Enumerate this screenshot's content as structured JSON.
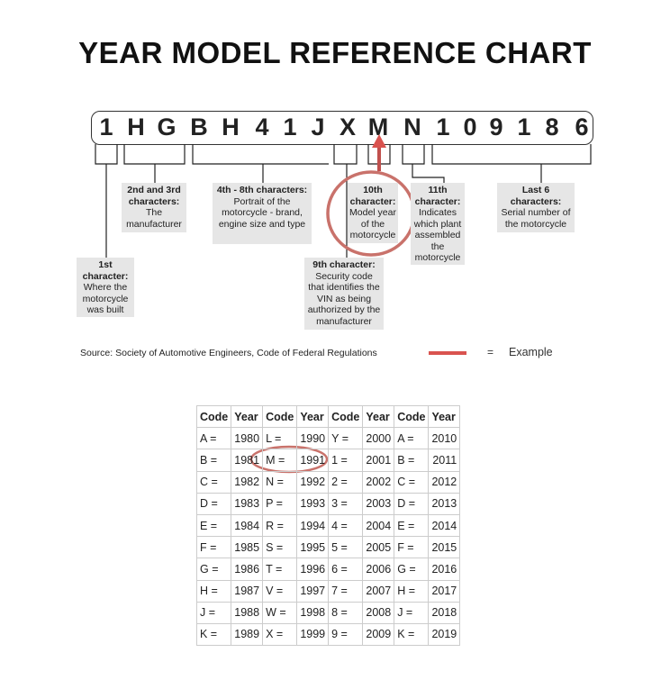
{
  "title": "YEAR MODEL REFERENCE CHART",
  "vin": [
    "1",
    "H",
    "G",
    "B",
    "H",
    "4",
    "1",
    "J",
    "X",
    "M",
    "N",
    "1",
    "0",
    "9",
    "1",
    "8",
    "6"
  ],
  "labels": {
    "first": {
      "head": "1st character:",
      "body": "Where the motorcycle was built"
    },
    "second_third": {
      "head": "2nd and 3rd characters:",
      "body": "The manufacturer"
    },
    "fourth_eighth": {
      "head": "4th - 8th characters:",
      "body": "Portrait of the motorcycle - brand, engine size and type"
    },
    "ninth": {
      "head": "9th character:",
      "body": "Security code that identifies the VIN as being authorized by the manufacturer"
    },
    "tenth": {
      "head": "10th character:",
      "body": "Model year of the motorcycle"
    },
    "eleventh": {
      "head": "11th character:",
      "body": "Indicates which plant assembled the motorcycle"
    },
    "last6": {
      "head": "Last 6 characters:",
      "body": "Serial number of the motorcycle"
    }
  },
  "source": "Source:  Society of Automotive Engineers, Code of Federal Regulations",
  "legend": {
    "equals": "=",
    "label": "Example",
    "color": "#d9534f"
  },
  "highlight_color": "#c0504d",
  "table": {
    "headers": [
      "Code",
      "Year",
      "Code",
      "Year",
      "Code",
      "Year",
      "Code",
      "Year"
    ],
    "rows": [
      [
        "A =",
        "1980",
        "L =",
        "1990",
        "Y =",
        "2000",
        "A =",
        "2010"
      ],
      [
        "B =",
        "1981",
        "M =",
        "1991",
        "1 =",
        "2001",
        "B =",
        "2011"
      ],
      [
        "C =",
        "1982",
        "N =",
        "1992",
        "2 =",
        "2002",
        "C =",
        "2012"
      ],
      [
        "D =",
        "1983",
        "P =",
        "1993",
        "3 =",
        "2003",
        "D =",
        "2013"
      ],
      [
        "E =",
        "1984",
        "R =",
        "1994",
        "4 =",
        "2004",
        "E =",
        "2014"
      ],
      [
        "F =",
        "1985",
        "S =",
        "1995",
        "5 =",
        "2005",
        "F =",
        "2015"
      ],
      [
        "G =",
        "1986",
        "T =",
        "1996",
        "6 =",
        "2006",
        "G =",
        "2016"
      ],
      [
        "H =",
        "1987",
        "V =",
        "1997",
        "7 =",
        "2007",
        "H =",
        "2017"
      ],
      [
        "J =",
        "1988",
        "W =",
        "1998",
        "8 =",
        "2008",
        "J =",
        "2018"
      ],
      [
        "K =",
        "1989",
        "X =",
        "1999",
        "9 =",
        "2009",
        "K =",
        "2019"
      ]
    ]
  }
}
